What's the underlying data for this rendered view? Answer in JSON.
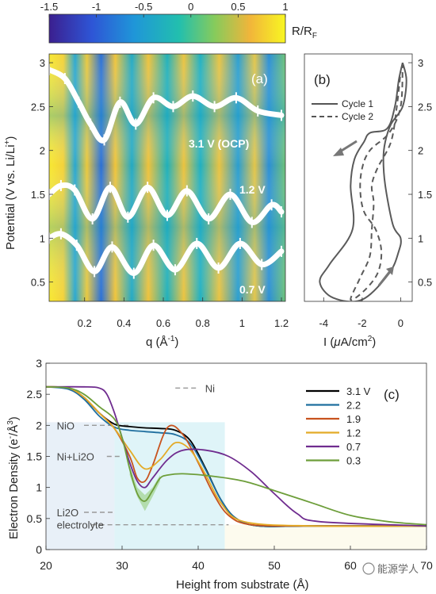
{
  "colorbar": {
    "label_main": "R/R",
    "label_sub": "F",
    "ticks": [
      "-1.5",
      "-1",
      "-0.5",
      "0",
      "0.5",
      "1"
    ],
    "stops": [
      "#3b1f8f",
      "#2e55d6",
      "#1f96d8",
      "#22bfae",
      "#86cb5c",
      "#f1b53a",
      "#f8f622"
    ]
  },
  "panel_a": {
    "label": "(a)",
    "ylabel": "Potential (V vs. Li/Li",
    "ylabel_sup": "+",
    "ylabel_end": ")",
    "xlabel_main": "q (Å",
    "xlabel_sup": "-1",
    "xlabel_end": ")",
    "xticks": [
      "0.2",
      "0.4",
      "0.6",
      "0.8",
      "1",
      "1.2"
    ],
    "yticks": [
      "0.5",
      "1",
      "1.5",
      "2",
      "2.5",
      "3"
    ],
    "annotations": [
      "3.1 V (OCP)",
      "1.2 V",
      "0.7 V"
    ]
  },
  "panel_b": {
    "label": "(b)",
    "xlabel_main": "I (",
    "xlabel_mu": "μ",
    "xlabel_unit": "A/cm",
    "xlabel_sup": "2",
    "xlabel_end": ")",
    "xticks": [
      "-4",
      "-2",
      "0"
    ],
    "yticks": [
      "0.5",
      "1",
      "1.5",
      "2",
      "2.5",
      "3"
    ],
    "legend": [
      "Cycle 1",
      "Cycle 2"
    ]
  },
  "panel_c": {
    "label": "(c)",
    "ylabel_main": "Electron Density (e",
    "ylabel_sup1": "-",
    "ylabel_mid": "/Å",
    "ylabel_sup2": "3",
    "ylabel_end": ")",
    "xlabel": "Height from substrate (Å)",
    "xticks": [
      "20",
      "30",
      "40",
      "50",
      "60",
      "70"
    ],
    "yticks": [
      "0",
      "0.5",
      "1",
      "1.5",
      "2",
      "2.5",
      "3"
    ],
    "layer_labels": [
      "Ni",
      "NiO",
      "Ni+Li2O",
      "Li2O",
      "electrolyte"
    ],
    "watermark": "能源学人"
  },
  "chart_data": [
    {
      "type": "heatmap",
      "panel": "a",
      "xlabel": "q (Å^-1)",
      "ylabel": "Potential (V vs. Li/Li+)",
      "xlim": [
        0.02,
        1.22
      ],
      "ylim": [
        0.28,
        3.1
      ],
      "colorbar_range": [
        -1.5,
        1
      ],
      "colorbar_label": "R/R_F",
      "series": [
        {
          "name": "3.1 V (OCP)",
          "x": [
            0.02,
            0.1,
            0.17,
            0.23,
            0.3,
            0.38,
            0.46,
            0.55,
            0.65,
            0.75,
            0.86,
            0.97,
            1.08,
            1.2
          ],
          "y": [
            2.92,
            2.82,
            2.55,
            2.3,
            2.12,
            2.55,
            2.3,
            2.6,
            2.5,
            2.62,
            2.5,
            2.6,
            2.45,
            2.4
          ]
        },
        {
          "name": "1.2 V",
          "x": [
            0.02,
            0.08,
            0.15,
            0.24,
            0.33,
            0.42,
            0.52,
            0.62,
            0.72,
            0.83,
            0.94,
            1.05,
            1.15,
            1.2
          ],
          "y": [
            1.5,
            1.6,
            1.55,
            1.22,
            1.58,
            1.24,
            1.58,
            1.26,
            1.54,
            1.22,
            1.5,
            1.18,
            1.38,
            1.3
          ]
        },
        {
          "name": "0.7 V",
          "x": [
            0.02,
            0.08,
            0.16,
            0.25,
            0.34,
            0.45,
            0.55,
            0.66,
            0.77,
            0.88,
            0.99,
            1.1,
            1.2
          ],
          "y": [
            1.0,
            1.05,
            0.92,
            0.62,
            0.9,
            0.6,
            0.92,
            0.64,
            0.94,
            0.66,
            0.94,
            0.7,
            0.85
          ]
        }
      ]
    },
    {
      "type": "line",
      "panel": "b",
      "xlabel": "I (μA/cm2)",
      "ylabel": "",
      "xlim": [
        -5,
        0.6
      ],
      "ylim": [
        0.28,
        3.1
      ],
      "series": [
        {
          "name": "Cycle 1",
          "x": [
            0.1,
            0.3,
            0.1,
            -0.5,
            -0.8,
            -0.9,
            -0.8,
            -0.4,
            0.0,
            -0.1,
            -0.6,
            -2.0,
            -3.5,
            -4.2,
            -3.7,
            -2.5,
            -2.6,
            -2.4,
            -1.9,
            -1.6,
            -0.7,
            -0.3,
            -0.1,
            0.1
          ],
          "y": [
            3.0,
            2.8,
            2.5,
            2.3,
            2.1,
            1.9,
            1.6,
            1.15,
            1.0,
            0.85,
            0.6,
            0.3,
            0.32,
            0.5,
            0.7,
            1.1,
            1.6,
            1.9,
            2.1,
            2.2,
            2.25,
            2.5,
            2.8,
            3.0
          ]
        },
        {
          "name": "Cycle 2",
          "x": [
            0.1,
            0.0,
            -0.6,
            -1.6,
            -2.0,
            -2.1,
            -1.9,
            -1.3,
            -1.0,
            -1.2,
            -1.9,
            -2.6,
            -2.1,
            -1.6,
            -1.5,
            -1.4,
            -1.5,
            -1.2,
            -0.5,
            -0.2,
            0.0
          ],
          "y": [
            3.0,
            2.5,
            2.2,
            2.0,
            1.8,
            1.55,
            1.3,
            1.1,
            0.85,
            0.6,
            0.4,
            0.3,
            0.55,
            0.8,
            1.1,
            1.4,
            1.6,
            1.8,
            2.1,
            2.5,
            2.9
          ]
        }
      ]
    },
    {
      "type": "line",
      "panel": "c",
      "xlabel": "Height from substrate (Å)",
      "ylabel": "Electron Density (e-/Å3)",
      "xlim": [
        20,
        70
      ],
      "ylim": [
        0,
        3
      ],
      "legend_position": "top-right",
      "series": [
        {
          "name": "3.1 V",
          "color": "#000000",
          "x": [
            20,
            23,
            25,
            27,
            29,
            31,
            33,
            35,
            37,
            39,
            41,
            43,
            45,
            48,
            55,
            70
          ],
          "y": [
            2.62,
            2.6,
            2.45,
            2.2,
            2.02,
            1.98,
            1.96,
            1.95,
            1.92,
            1.75,
            1.3,
            0.8,
            0.5,
            0.38,
            0.38,
            0.38
          ]
        },
        {
          "name": "2.2",
          "color": "#1f6f9f",
          "x": [
            20,
            23,
            25,
            27,
            29,
            31,
            33,
            35,
            37,
            39,
            41,
            43,
            45,
            48,
            55,
            70
          ],
          "y": [
            2.62,
            2.58,
            2.42,
            2.15,
            1.97,
            1.92,
            1.9,
            1.88,
            1.85,
            1.7,
            1.28,
            0.8,
            0.5,
            0.38,
            0.38,
            0.38
          ]
        },
        {
          "name": "1.9",
          "color": "#c8531e",
          "x": [
            20,
            23,
            25,
            27,
            29,
            31,
            32,
            33,
            34,
            36,
            38,
            40,
            42,
            44,
            47,
            55,
            70
          ],
          "y": [
            2.62,
            2.6,
            2.45,
            2.2,
            1.95,
            1.5,
            1.15,
            1.1,
            1.35,
            1.97,
            1.85,
            1.4,
            0.9,
            0.55,
            0.4,
            0.38,
            0.38
          ]
        },
        {
          "name": "1.2",
          "color": "#e3ab27",
          "x": [
            20,
            23,
            25,
            27,
            29,
            31,
            33,
            35,
            37,
            39,
            41,
            43,
            46,
            55,
            70
          ],
          "y": [
            2.62,
            2.6,
            2.45,
            2.2,
            1.95,
            1.6,
            1.3,
            1.45,
            1.72,
            1.6,
            1.2,
            0.75,
            0.45,
            0.38,
            0.38
          ]
        },
        {
          "name": "0.7",
          "color": "#6f2c8f",
          "x": [
            20,
            25,
            27,
            28,
            29,
            30,
            31,
            32,
            33,
            34,
            36,
            38,
            41,
            44,
            47,
            50,
            53,
            56,
            70
          ],
          "y": [
            2.62,
            2.62,
            2.6,
            2.5,
            2.2,
            1.8,
            1.4,
            1.1,
            1.0,
            1.15,
            1.45,
            1.6,
            1.6,
            1.5,
            1.25,
            0.9,
            0.58,
            0.45,
            0.38
          ]
        },
        {
          "name": "0.3",
          "color": "#6d9e3a",
          "x": [
            20,
            23,
            25,
            27,
            29,
            30,
            31,
            32,
            33,
            34,
            35,
            36,
            38,
            42,
            46,
            50,
            55,
            60,
            65,
            70
          ],
          "y": [
            2.62,
            2.6,
            2.5,
            2.3,
            2.1,
            1.8,
            1.3,
            0.9,
            0.78,
            0.95,
            1.15,
            1.2,
            1.22,
            1.18,
            1.1,
            0.95,
            0.75,
            0.55,
            0.45,
            0.4
          ]
        }
      ]
    }
  ]
}
